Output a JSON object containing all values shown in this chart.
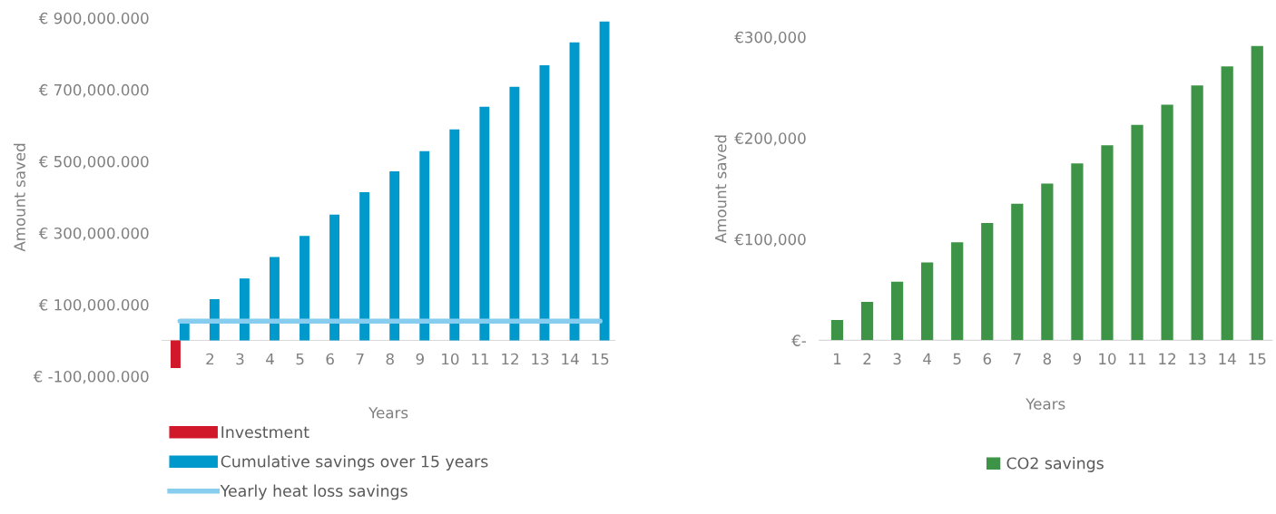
{
  "chart_data": [
    {
      "type": "bar",
      "xlabel": "Years",
      "ylabel": "Amount saved",
      "categories": [
        null,
        "2",
        "3",
        "4",
        "5",
        "6",
        "7",
        "8",
        "9",
        "10",
        "11",
        "12",
        "13",
        "14",
        "15"
      ],
      "series": [
        {
          "name": "Investment",
          "color": "#d0182a",
          "values": [
            -77000,
            null,
            null,
            null,
            null,
            null,
            null,
            null,
            null,
            null,
            null,
            null,
            null,
            null,
            null
          ]
        },
        {
          "name": "Cumulative savings over 15 years",
          "color": "#0099cc",
          "values": [
            52000,
            115000,
            173000,
            233000,
            292000,
            351000,
            414000,
            472000,
            528000,
            589000,
            652000,
            708000,
            768000,
            832000,
            890000
          ]
        },
        {
          "name": "Yearly heat loss savings",
          "type": "line",
          "color": "#87cdf0",
          "values": [
            54000,
            54000,
            54000,
            54000,
            54000,
            54000,
            54000,
            54000,
            54000,
            54000,
            54000,
            54000,
            54000,
            54000,
            54000
          ]
        }
      ],
      "ylim": [
        -100000,
        900000
      ],
      "yticks": [
        {
          "value": -100000,
          "label": "€ -100,000.000"
        },
        {
          "value": 100000,
          "label": "€ 100,000.000"
        },
        {
          "value": 300000,
          "label": "€ 300,000.000"
        },
        {
          "value": 500000,
          "label": "€ 500,000.000"
        },
        {
          "value": 700000,
          "label": "€ 700,000.000"
        },
        {
          "value": 900000,
          "label": "€ 900,000.000"
        }
      ],
      "grid": false,
      "legend": "bottom left"
    },
    {
      "type": "bar",
      "xlabel": "Years",
      "ylabel": "Amount saved",
      "categories": [
        "1",
        "2",
        "3",
        "4",
        "5",
        "6",
        "7",
        "8",
        "9",
        "10",
        "11",
        "12",
        "13",
        "14",
        "15"
      ],
      "series": [
        {
          "name": "CO2 savings",
          "color": "#3d9446",
          "values": [
            20000,
            38000,
            58000,
            77000,
            97000,
            116000,
            135000,
            155000,
            175000,
            193000,
            213000,
            233000,
            252000,
            271000,
            291000
          ]
        }
      ],
      "ylim": [
        0,
        300000
      ],
      "yticks": [
        {
          "value": 0,
          "label": "€-"
        },
        {
          "value": 100000,
          "label": "€100,000"
        },
        {
          "value": 200000,
          "label": "€200,000"
        },
        {
          "value": 300000,
          "label": "€300,000"
        }
      ],
      "grid": false,
      "legend": "bottom"
    }
  ]
}
